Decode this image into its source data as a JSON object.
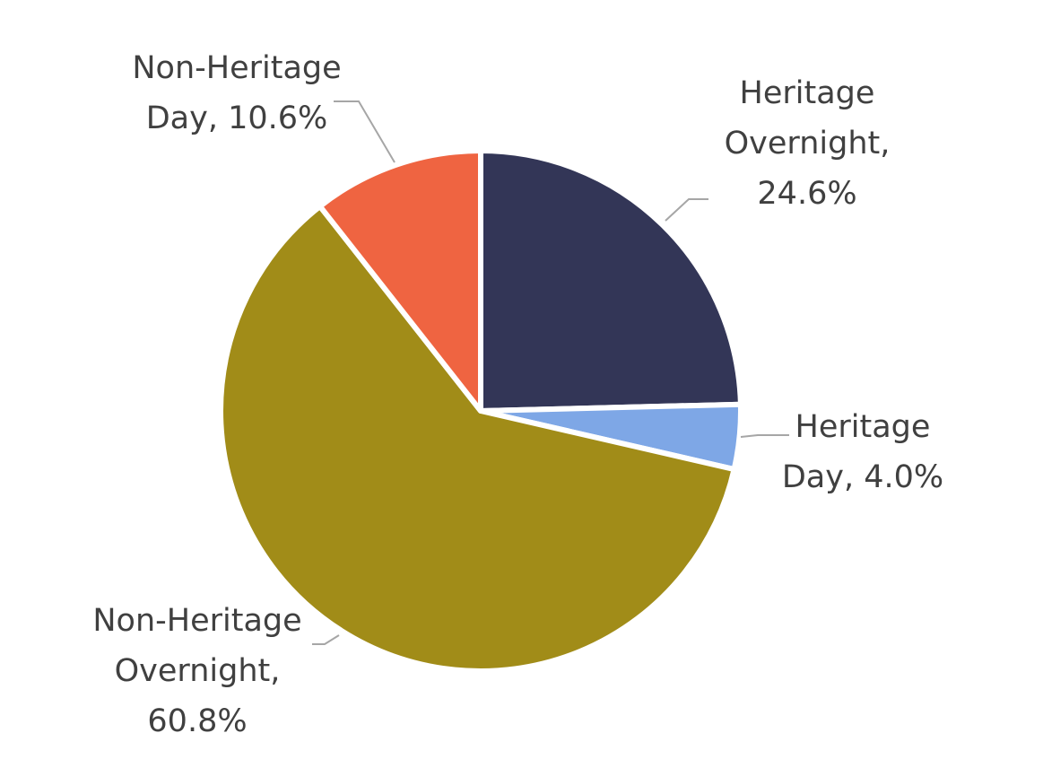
{
  "chart_data": {
    "type": "pie",
    "title": "",
    "start_angle_deg": 0,
    "direction": "clockwise",
    "slices": [
      {
        "label": "Heritage Overnight",
        "value": 24.6,
        "display": "24.6%",
        "color": "#333657"
      },
      {
        "label": "Heritage Day",
        "value": 4.0,
        "display": "4.0%",
        "color": "#7ea7e6"
      },
      {
        "label": "Non-Heritage Overnight",
        "value": 60.8,
        "display": "60.8%",
        "color": "#a18c18"
      },
      {
        "label": "Non-Heritage Day",
        "value": 10.6,
        "display": "10.6%",
        "color": "#ef6441"
      }
    ],
    "data_labels": [
      {
        "lines": [
          "Heritage",
          "Overnight,",
          "24.6%"
        ]
      },
      {
        "lines": [
          "Heritage",
          "Day, 4.0%"
        ]
      },
      {
        "lines": [
          "Non-Heritage",
          "Overnight,",
          "60.8%"
        ]
      },
      {
        "lines": [
          "Non-Heritage",
          "Day, 10.6%"
        ]
      }
    ],
    "legend": "none",
    "label_position": "outside-with-leader-lines"
  }
}
